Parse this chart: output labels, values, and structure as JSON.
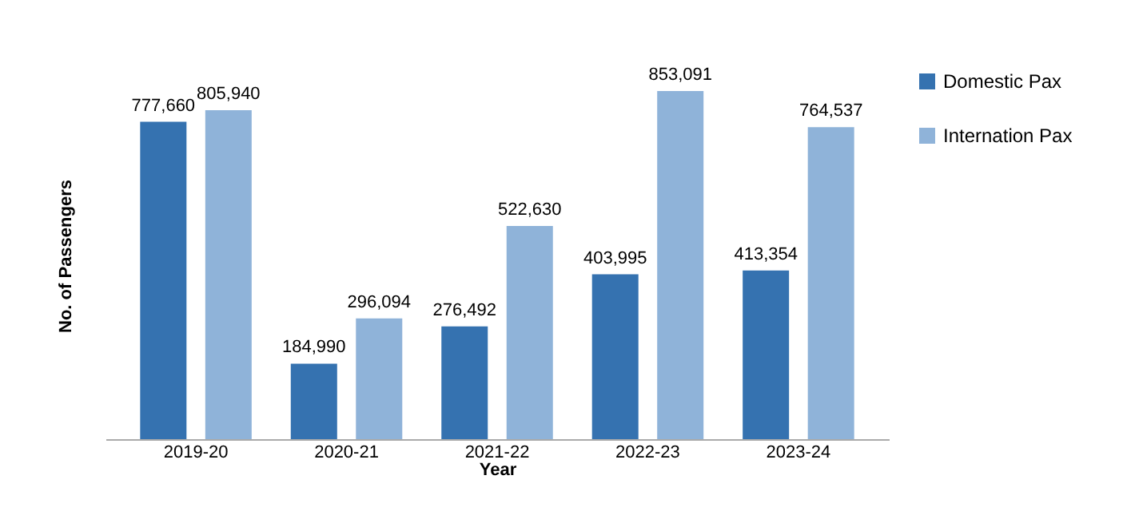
{
  "chart_data": {
    "type": "bar",
    "xlabel": "Year",
    "ylabel": "No. of Passengers",
    "categories": [
      "2019-20",
      "2020-21",
      "2021-22",
      "2022-23",
      "2023-24"
    ],
    "series": [
      {
        "name": "Domestic Pax",
        "color": "#3572b0",
        "values": [
          777660,
          184990,
          276492,
          403995,
          413354
        ],
        "value_labels": [
          "777,660",
          "184,990",
          "276,492",
          "403,995",
          "413,354"
        ]
      },
      {
        "name": "Internation Pax",
        "color": "#8fb3d9",
        "values": [
          805940,
          296094,
          522630,
          853091,
          764537
        ],
        "value_labels": [
          "805,940",
          "296,094",
          "522,630",
          "853,091",
          "764,537"
        ]
      }
    ],
    "legend": "right",
    "grid": false,
    "tick_labels": "x"
  }
}
